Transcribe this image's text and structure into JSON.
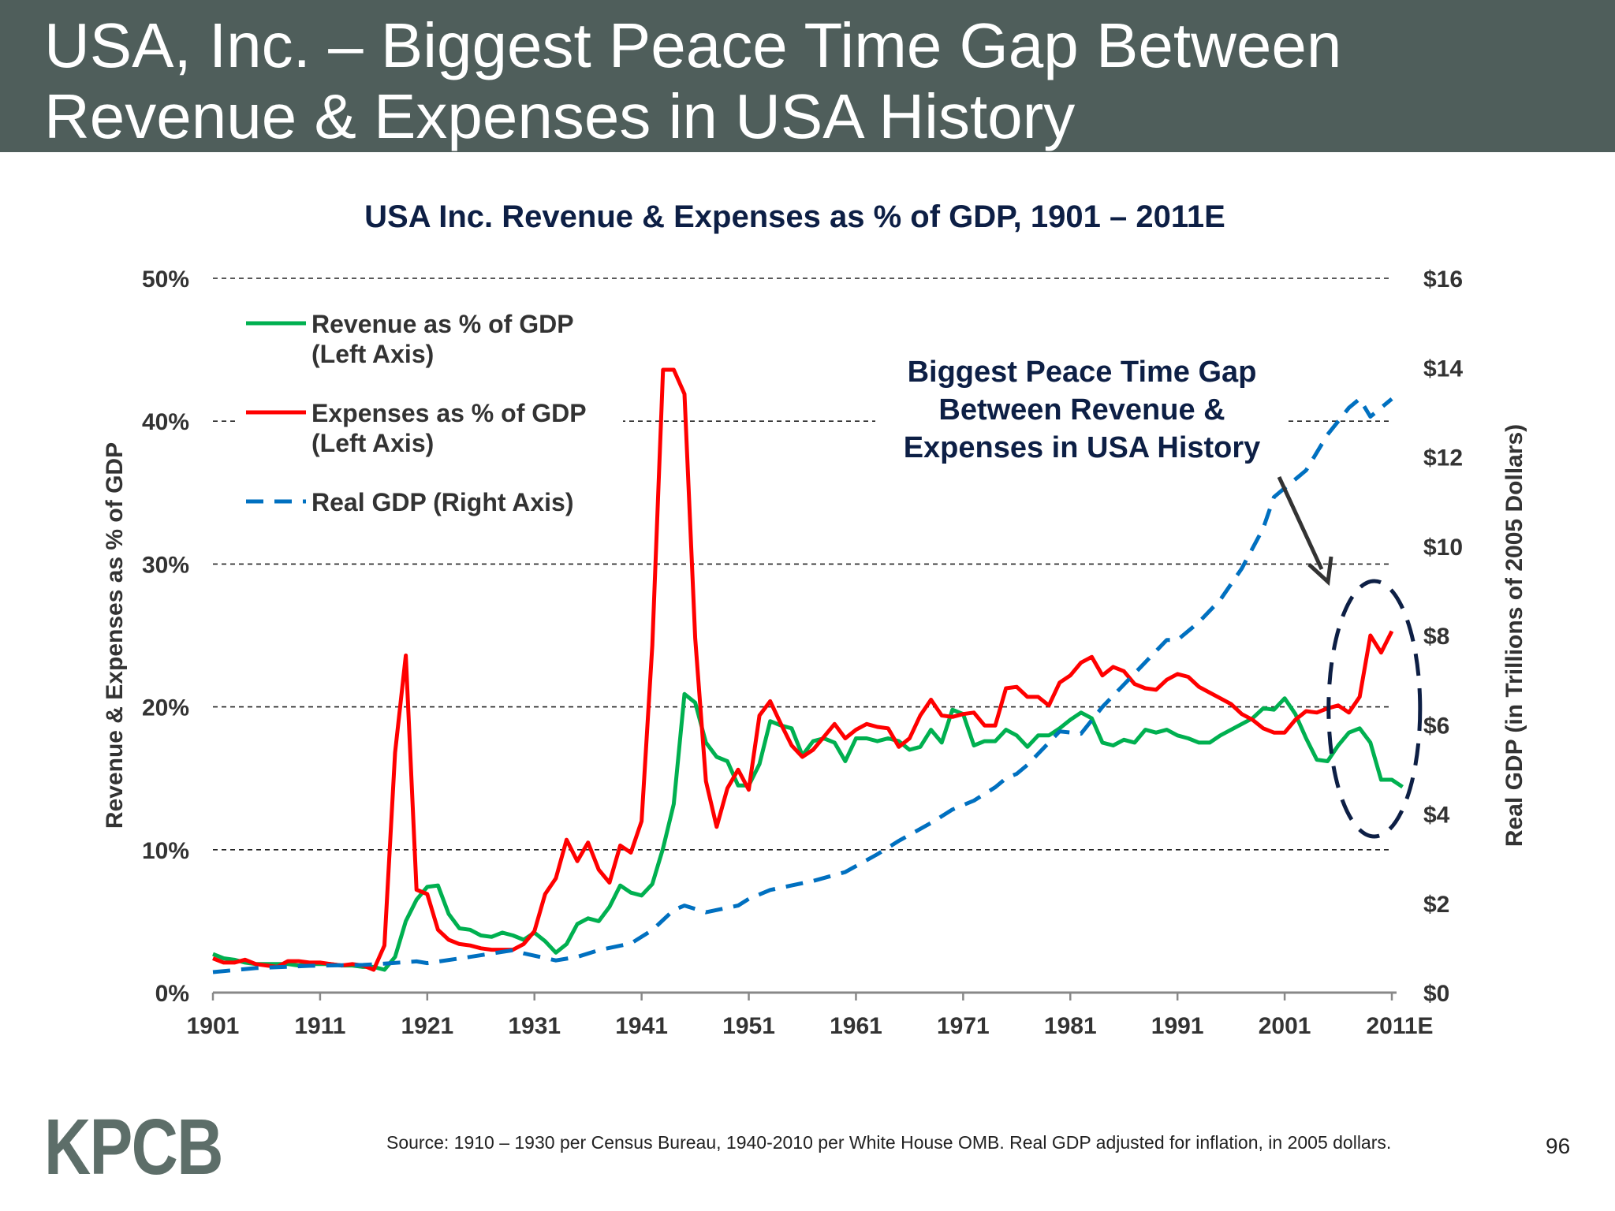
{
  "slide": {
    "title_line1": "USA, Inc. – Biggest Peace Time Gap Between",
    "title_line2": "Revenue & Expenses in USA History",
    "source": "Source: 1910 – 1930 per Census Bureau, 1940-2010 per White House OMB. Real GDP adjusted for inflation, in 2005 dollars.",
    "page_number": "96",
    "logo": "KPCB",
    "colors": {
      "title_bar": "#4f5e5b",
      "revenue": "#00b050",
      "expenses": "#ff0000",
      "gdp": "#0070c0",
      "annotation": "#0d1f45"
    }
  },
  "chart_data": {
    "type": "line",
    "title": "USA Inc. Revenue & Expenses as % of GDP, 1901 – 2011E",
    "ylabel": "Revenue & Expenses as % of GDP",
    "y2label": "Real GDP (in Trillions of 2005 Dollars)",
    "xlim": [
      1901,
      2011
    ],
    "ylim": [
      0,
      50
    ],
    "y2lim": [
      0,
      16
    ],
    "x_ticks": [
      "1901",
      "1911",
      "1921",
      "1931",
      "1941",
      "1951",
      "1961",
      "1971",
      "1981",
      "1991",
      "2001",
      "2011E"
    ],
    "y_ticks": [
      "0%",
      "10%",
      "20%",
      "30%",
      "40%",
      "50%"
    ],
    "y2_ticks": [
      "$0",
      "$2",
      "$4",
      "$6",
      "$8",
      "$10",
      "$12",
      "$14",
      "$16"
    ],
    "grid": "horizontal dashed",
    "legend_placement": "top-left",
    "annotation": {
      "lines": [
        "Biggest Peace Time Gap",
        "Between Revenue &",
        "Expenses in USA History"
      ],
      "highlight_years": [
        2007,
        2011
      ]
    },
    "series": [
      {
        "name": "Revenue as % of GDP",
        "name_line2": "(Left Axis)",
        "axis": "left",
        "start_year": 1901,
        "values": [
          2.7,
          2.4,
          2.3,
          2.1,
          2.0,
          2.0,
          2.0,
          2.0,
          1.9,
          2.0,
          2.0,
          2.0,
          1.9,
          1.9,
          1.8,
          1.8,
          1.6,
          2.5,
          5.0,
          6.5,
          7.4,
          7.5,
          5.5,
          4.5,
          4.4,
          4.0,
          3.9,
          4.2,
          4.0,
          3.7,
          4.2,
          3.6,
          2.8,
          3.4,
          4.8,
          5.2,
          5.0,
          6.0,
          7.5,
          7.0,
          6.8,
          7.6,
          10.1,
          13.2,
          20.9,
          20.3,
          17.5,
          16.5,
          16.2,
          14.5,
          14.5,
          16.0,
          19.0,
          18.7,
          18.5,
          16.6,
          17.6,
          17.8,
          17.5,
          16.2,
          17.8,
          17.8,
          17.6,
          17.8,
          17.6,
          17.0,
          17.2,
          18.4,
          17.5,
          19.8,
          19.5,
          17.3,
          17.6,
          17.6,
          18.4,
          18.0,
          17.2,
          18.0,
          18.0,
          18.5,
          19.1,
          19.6,
          19.2,
          17.5,
          17.3,
          17.7,
          17.5,
          18.4,
          18.2,
          18.4,
          18.0,
          17.8,
          17.5,
          17.5,
          18.0,
          18.4,
          18.8,
          19.2,
          19.9,
          19.8,
          20.6,
          19.5,
          17.8,
          16.3,
          16.2,
          17.3,
          18.2,
          18.5,
          17.5,
          14.9,
          14.9,
          14.4
        ]
      },
      {
        "name": "Expenses as % of GDP",
        "name_line2": "(Left Axis)",
        "axis": "left",
        "start_year": 1901,
        "values": [
          2.4,
          2.1,
          2.1,
          2.3,
          2.0,
          1.9,
          1.8,
          2.2,
          2.2,
          2.1,
          2.1,
          2.0,
          1.9,
          2.0,
          1.9,
          1.6,
          3.3,
          16.8,
          23.6,
          7.2,
          6.9,
          4.4,
          3.7,
          3.4,
          3.3,
          3.1,
          3.0,
          3.0,
          3.0,
          3.4,
          4.3,
          6.9,
          8.0,
          10.7,
          9.2,
          10.5,
          8.6,
          7.7,
          10.3,
          9.8,
          12.0,
          24.3,
          43.6,
          43.6,
          41.9,
          24.8,
          14.8,
          11.6,
          14.3,
          15.6,
          14.2,
          19.4,
          20.4,
          18.8,
          17.3,
          16.5,
          17.0,
          17.9,
          18.8,
          17.8,
          18.4,
          18.8,
          18.6,
          18.5,
          17.2,
          17.8,
          19.4,
          20.5,
          19.4,
          19.3,
          19.5,
          19.6,
          18.7,
          18.7,
          21.3,
          21.4,
          20.7,
          20.7,
          20.1,
          21.7,
          22.2,
          23.1,
          23.5,
          22.2,
          22.8,
          22.5,
          21.6,
          21.3,
          21.2,
          21.9,
          22.3,
          22.1,
          21.4,
          21.0,
          20.6,
          20.2,
          19.5,
          19.1,
          18.5,
          18.2,
          18.2,
          19.1,
          19.7,
          19.6,
          19.9,
          20.1,
          19.6,
          20.7,
          25.0,
          23.8,
          25.3
        ]
      },
      {
        "name": "Real GDP (Right Axis)",
        "axis": "right",
        "x": [
          1901,
          1905,
          1910,
          1915,
          1917,
          1920,
          1921,
          1925,
          1929,
          1930,
          1933,
          1935,
          1937,
          1940,
          1942,
          1944,
          1945,
          1947,
          1950,
          1951,
          1953,
          1955,
          1957,
          1960,
          1963,
          1965,
          1968,
          1970,
          1972,
          1974,
          1975,
          1976,
          1977,
          1979,
          1980,
          1982,
          1984,
          1986,
          1988,
          1990,
          1991,
          1993,
          1995,
          1997,
          1999,
          2000,
          2001,
          2003,
          2005,
          2007,
          2008,
          2009,
          2011
        ],
        "values": [
          0.46,
          0.55,
          0.6,
          0.62,
          0.65,
          0.7,
          0.66,
          0.8,
          0.95,
          0.88,
          0.72,
          0.8,
          0.95,
          1.1,
          1.4,
          1.85,
          1.95,
          1.8,
          1.95,
          2.1,
          2.3,
          2.4,
          2.5,
          2.7,
          3.1,
          3.4,
          3.8,
          4.1,
          4.3,
          4.6,
          4.8,
          4.9,
          5.1,
          5.6,
          5.85,
          5.8,
          6.4,
          6.9,
          7.4,
          7.9,
          7.9,
          8.3,
          8.8,
          9.5,
          10.4,
          11.1,
          11.3,
          11.7,
          12.5,
          13.1,
          13.3,
          12.9,
          13.3
        ]
      }
    ]
  }
}
